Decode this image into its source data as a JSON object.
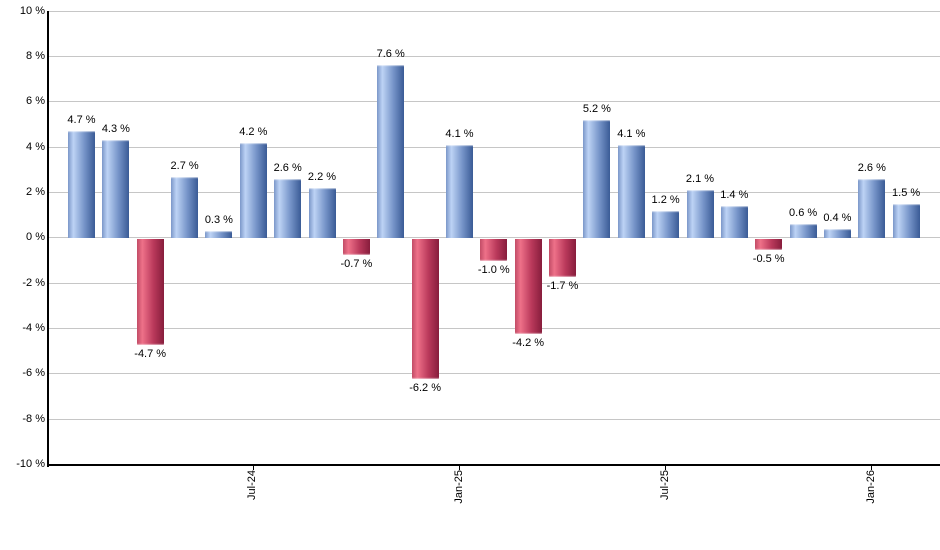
{
  "chart_data": {
    "type": "bar",
    "title": "",
    "xlabel": "",
    "ylabel": "",
    "values": [
      4.7,
      4.3,
      -4.7,
      2.7,
      0.3,
      4.2,
      2.6,
      2.2,
      -0.7,
      7.6,
      -6.2,
      4.1,
      -1.0,
      -4.2,
      -1.7,
      5.2,
      4.1,
      1.2,
      2.1,
      1.4,
      -0.5,
      0.6,
      0.4,
      2.6,
      1.5
    ],
    "bar_labels": [
      "4.7 %",
      "4.3 %",
      "-4.7 %",
      "2.7 %",
      "0.3 %",
      "4.2 %",
      "2.6 %",
      "2.2 %",
      "-0.7 %",
      "7.6 %",
      "-6.2 %",
      "4.1 %",
      "-1.0 %",
      "-4.2 %",
      "-1.7 %",
      "5.2 %",
      "4.1 %",
      "1.2 %",
      "2.1 %",
      "1.4 %",
      "-0.5 %",
      "0.6 %",
      "0.4 %",
      "2.6 %",
      "1.5 %"
    ],
    "y_ticks": [
      {
        "label": "10 %",
        "value": 10
      },
      {
        "label": "8 %",
        "value": 8
      },
      {
        "label": "6 %",
        "value": 6
      },
      {
        "label": "4 %",
        "value": 4
      },
      {
        "label": "2 %",
        "value": 2
      },
      {
        "label": "0 %",
        "value": 0
      },
      {
        "label": "-2 %",
        "value": -2
      },
      {
        "label": "-4 %",
        "value": -4
      },
      {
        "label": "-6 %",
        "value": -6
      },
      {
        "label": "-8 %",
        "value": -8
      },
      {
        "label": "-10 %",
        "value": -10
      }
    ],
    "x_ticks": [
      {
        "label": "Jul-24",
        "bar_index": 5
      },
      {
        "label": "Jan-25",
        "bar_index": 11
      },
      {
        "label": "Jul-25",
        "bar_index": 17
      },
      {
        "label": "Jan-26",
        "bar_index": 23
      }
    ],
    "ylim": [
      -10,
      10
    ],
    "grid": true,
    "legend": "none",
    "colors": {
      "positive_edge": "#7b97c9",
      "positive_highlight": "#bdd3f5",
      "positive_mid": "#7795c9",
      "positive_dark": "#3a5b96",
      "negative_edge": "#c24c66",
      "negative_highlight": "#ee7189",
      "negative_mid": "#bb3a5c",
      "negative_dark": "#871d3c",
      "gridline": "#c6c6c6",
      "axis": "#000000",
      "label_text": "#000000"
    }
  }
}
